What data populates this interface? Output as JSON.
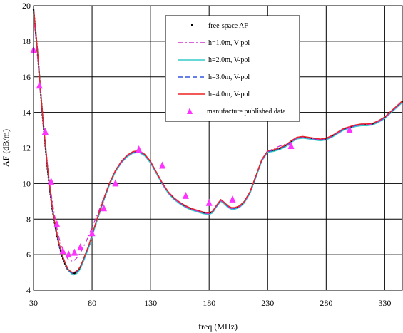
{
  "chart_data": {
    "type": "line",
    "xlabel": "freq (MHz)",
    "ylabel": "AF (dB/m)",
    "xlim": [
      30,
      345
    ],
    "ylim": [
      4,
      20
    ],
    "xticks": [
      30,
      80,
      130,
      180,
      230,
      280,
      330
    ],
    "yticks": [
      4,
      6,
      8,
      10,
      12,
      14,
      16,
      18,
      20
    ],
    "grid": true,
    "legend_position": "top-right",
    "series": [
      {
        "name": "free-space AF",
        "style": "dotted",
        "color": "#000000",
        "x": [
          30,
          32,
          34,
          36,
          38,
          40,
          42,
          44,
          46,
          48,
          50,
          52,
          55,
          58,
          60,
          62,
          64,
          65,
          66,
          68,
          70,
          72,
          75,
          78,
          80,
          83,
          86,
          90,
          95,
          100,
          105,
          110,
          115,
          120,
          125,
          130,
          135,
          140,
          145,
          150,
          155,
          160,
          165,
          170,
          175,
          180,
          183,
          186,
          190,
          193,
          196,
          199,
          202,
          206,
          210,
          215,
          220,
          225,
          230,
          235,
          240,
          245,
          250,
          255,
          260,
          265,
          270,
          275,
          280,
          285,
          290,
          295,
          300,
          305,
          310,
          315,
          320,
          325,
          330,
          335,
          340,
          345
        ],
        "y": [
          19.8,
          18.4,
          16.9,
          15.2,
          13.6,
          12.2,
          10.8,
          9.6,
          8.6,
          7.8,
          7.1,
          6.5,
          5.8,
          5.3,
          5.1,
          5.0,
          4.95,
          4.95,
          5.0,
          5.1,
          5.3,
          5.6,
          6.1,
          6.6,
          7.1,
          7.7,
          8.3,
          9.1,
          10.0,
          10.7,
          11.2,
          11.55,
          11.75,
          11.8,
          11.6,
          11.2,
          10.6,
          10.0,
          9.5,
          9.15,
          8.9,
          8.7,
          8.55,
          8.45,
          8.35,
          8.3,
          8.4,
          8.7,
          9.05,
          8.9,
          8.7,
          8.6,
          8.6,
          8.7,
          8.95,
          9.5,
          10.4,
          11.3,
          11.8,
          11.85,
          11.95,
          12.1,
          12.35,
          12.55,
          12.6,
          12.55,
          12.5,
          12.45,
          12.5,
          12.65,
          12.85,
          13.05,
          13.15,
          13.25,
          13.3,
          13.3,
          13.35,
          13.5,
          13.7,
          14.0,
          14.3,
          14.6
        ]
      },
      {
        "name": "h=1.0m, V-pol",
        "style": "dashdot",
        "color": "#cc33cc",
        "x": [
          30,
          32,
          34,
          36,
          38,
          40,
          42,
          44,
          46,
          48,
          50,
          52,
          55,
          58,
          60,
          62,
          64,
          66,
          68,
          70,
          72,
          75,
          78,
          80,
          83,
          86,
          90,
          95,
          100,
          105,
          110,
          115,
          120,
          125,
          130,
          135,
          140,
          145,
          150,
          155,
          160,
          165,
          170,
          175,
          180,
          183,
          186,
          190,
          193,
          196,
          199,
          202,
          206,
          210,
          215,
          220,
          225,
          230,
          235,
          240,
          245,
          248,
          250,
          255,
          260,
          265,
          270,
          275,
          280,
          285,
          290,
          295,
          300,
          305,
          310,
          315,
          320,
          325,
          330,
          335,
          340,
          345
        ],
        "y": [
          19.6,
          18.2,
          16.7,
          15.1,
          13.6,
          12.3,
          11.0,
          9.9,
          9.0,
          8.2,
          7.5,
          6.9,
          6.3,
          5.9,
          5.7,
          5.65,
          5.65,
          5.75,
          5.9,
          6.1,
          6.35,
          6.75,
          7.2,
          7.55,
          8.0,
          8.5,
          9.2,
          10.05,
          10.7,
          11.2,
          11.55,
          11.75,
          11.8,
          11.6,
          11.2,
          10.6,
          10.0,
          9.5,
          9.15,
          8.9,
          8.7,
          8.55,
          8.45,
          8.35,
          8.3,
          8.4,
          8.7,
          9.05,
          8.9,
          8.7,
          8.6,
          8.6,
          8.7,
          8.95,
          9.5,
          10.4,
          11.3,
          11.8,
          11.95,
          12.1,
          12.2,
          12.15,
          12.35,
          12.55,
          12.6,
          12.55,
          12.5,
          12.45,
          12.5,
          12.65,
          12.85,
          13.05,
          13.15,
          13.25,
          13.3,
          13.3,
          13.35,
          13.5,
          13.7,
          14.0,
          14.3,
          14.6
        ]
      },
      {
        "name": "h=2.0m, V-pol",
        "style": "solid",
        "color": "#33cccc",
        "x": [
          30,
          32,
          34,
          36,
          38,
          40,
          42,
          44,
          46,
          48,
          50,
          52,
          55,
          58,
          60,
          62,
          64,
          66,
          68,
          70,
          72,
          75,
          78,
          80,
          83,
          86,
          90,
          95,
          100,
          105,
          110,
          115,
          120,
          125,
          130,
          135,
          140,
          145,
          150,
          155,
          160,
          165,
          170,
          175,
          180,
          183,
          186,
          190,
          193,
          196,
          199,
          202,
          206,
          210,
          215,
          220,
          225,
          230,
          235,
          240,
          245,
          250,
          255,
          260,
          265,
          270,
          275,
          280,
          285,
          290,
          295,
          300,
          305,
          310,
          315,
          320,
          325,
          330,
          335,
          340,
          345
        ],
        "y": [
          19.8,
          18.5,
          17.0,
          15.3,
          13.7,
          12.3,
          10.9,
          9.7,
          8.7,
          7.9,
          7.2,
          6.6,
          5.9,
          5.4,
          5.1,
          4.95,
          4.85,
          4.9,
          5.0,
          5.2,
          5.5,
          6.0,
          6.55,
          7.0,
          7.65,
          8.25,
          9.05,
          9.95,
          10.65,
          11.15,
          11.5,
          11.7,
          11.75,
          11.55,
          11.15,
          10.55,
          9.95,
          9.45,
          9.1,
          8.85,
          8.65,
          8.5,
          8.4,
          8.3,
          8.25,
          8.35,
          8.65,
          9.0,
          8.85,
          8.65,
          8.55,
          8.55,
          8.65,
          8.9,
          9.45,
          10.35,
          11.25,
          11.75,
          11.8,
          11.9,
          12.05,
          12.3,
          12.5,
          12.55,
          12.5,
          12.45,
          12.4,
          12.45,
          12.6,
          12.8,
          13.0,
          13.1,
          13.2,
          13.25,
          13.25,
          13.3,
          13.45,
          13.65,
          13.95,
          14.25,
          14.55
        ]
      },
      {
        "name": "h=3.0m, V-pol",
        "style": "dashed",
        "color": "#3355dd",
        "x": [
          30,
          32,
          34,
          36,
          38,
          40,
          42,
          44,
          46,
          48,
          50,
          52,
          55,
          58,
          60,
          62,
          64,
          66,
          68,
          70,
          72,
          75,
          78,
          80,
          83,
          86,
          90,
          95,
          100,
          105,
          110,
          115,
          120,
          125,
          130,
          135,
          140,
          145,
          150,
          155,
          160,
          165,
          170,
          175,
          180,
          183,
          186,
          190,
          193,
          196,
          199,
          202,
          206,
          210,
          215,
          220,
          225,
          230,
          235,
          240,
          245,
          250,
          255,
          260,
          265,
          270,
          275,
          280,
          285,
          290,
          295,
          300,
          305,
          310,
          315,
          320,
          325,
          330,
          335,
          340,
          345
        ],
        "y": [
          19.7,
          18.4,
          16.9,
          15.2,
          13.6,
          12.2,
          10.8,
          9.6,
          8.6,
          7.8,
          7.1,
          6.5,
          5.85,
          5.35,
          5.1,
          5.0,
          4.95,
          5.0,
          5.1,
          5.3,
          5.6,
          6.1,
          6.65,
          7.1,
          7.7,
          8.3,
          9.1,
          10.0,
          10.7,
          11.2,
          11.55,
          11.75,
          11.8,
          11.6,
          11.2,
          10.6,
          10.0,
          9.5,
          9.15,
          8.9,
          8.7,
          8.55,
          8.45,
          8.35,
          8.3,
          8.4,
          8.7,
          9.05,
          8.9,
          8.7,
          8.6,
          8.6,
          8.7,
          8.95,
          9.5,
          10.4,
          11.3,
          11.8,
          11.85,
          11.95,
          12.1,
          12.35,
          12.55,
          12.6,
          12.55,
          12.5,
          12.45,
          12.5,
          12.65,
          12.85,
          13.05,
          13.15,
          13.25,
          13.3,
          13.3,
          13.35,
          13.5,
          13.7,
          14.0,
          14.3,
          14.6
        ]
      },
      {
        "name": "h=4.0m, V-pol",
        "style": "solid",
        "color": "#ee2222",
        "x": [
          30,
          32,
          34,
          36,
          38,
          40,
          42,
          44,
          46,
          48,
          50,
          52,
          55,
          58,
          60,
          62,
          64,
          66,
          68,
          70,
          72,
          75,
          78,
          80,
          83,
          86,
          90,
          95,
          100,
          105,
          110,
          115,
          120,
          125,
          130,
          135,
          140,
          145,
          150,
          155,
          160,
          165,
          170,
          175,
          180,
          183,
          186,
          190,
          193,
          196,
          199,
          202,
          206,
          210,
          215,
          220,
          225,
          230,
          235,
          240,
          245,
          250,
          255,
          260,
          265,
          270,
          275,
          280,
          285,
          290,
          295,
          300,
          305,
          310,
          315,
          320,
          325,
          330,
          335,
          340,
          345
        ],
        "y": [
          19.9,
          18.5,
          17.0,
          15.3,
          13.7,
          12.3,
          10.9,
          9.7,
          8.7,
          7.9,
          7.2,
          6.6,
          5.9,
          5.4,
          5.15,
          5.05,
          5.0,
          5.05,
          5.15,
          5.35,
          5.65,
          6.15,
          6.7,
          7.15,
          7.75,
          8.35,
          9.15,
          10.05,
          10.75,
          11.25,
          11.6,
          11.8,
          11.85,
          11.65,
          11.25,
          10.65,
          10.05,
          9.55,
          9.2,
          8.95,
          8.75,
          8.6,
          8.5,
          8.4,
          8.35,
          8.45,
          8.75,
          9.1,
          8.95,
          8.75,
          8.65,
          8.65,
          8.75,
          9.0,
          9.55,
          10.45,
          11.35,
          11.85,
          11.9,
          12.0,
          12.15,
          12.4,
          12.6,
          12.65,
          12.6,
          12.55,
          12.5,
          12.55,
          12.7,
          12.9,
          13.1,
          13.2,
          13.3,
          13.35,
          13.35,
          13.4,
          13.55,
          13.75,
          14.05,
          14.35,
          14.65
        ]
      },
      {
        "name": "manufacture published data",
        "style": "markers",
        "color": "#ff33ff",
        "x": [
          30,
          35,
          40,
          45,
          50,
          55,
          60,
          65,
          70,
          80,
          90,
          100,
          120,
          140,
          160,
          180,
          200,
          250,
          300
        ],
        "y": [
          17.5,
          15.5,
          12.9,
          10.1,
          7.7,
          6.2,
          6.0,
          6.1,
          6.4,
          7.2,
          8.6,
          10.0,
          11.9,
          11.0,
          9.3,
          8.9,
          9.1,
          12.1,
          13.0
        ]
      }
    ]
  }
}
